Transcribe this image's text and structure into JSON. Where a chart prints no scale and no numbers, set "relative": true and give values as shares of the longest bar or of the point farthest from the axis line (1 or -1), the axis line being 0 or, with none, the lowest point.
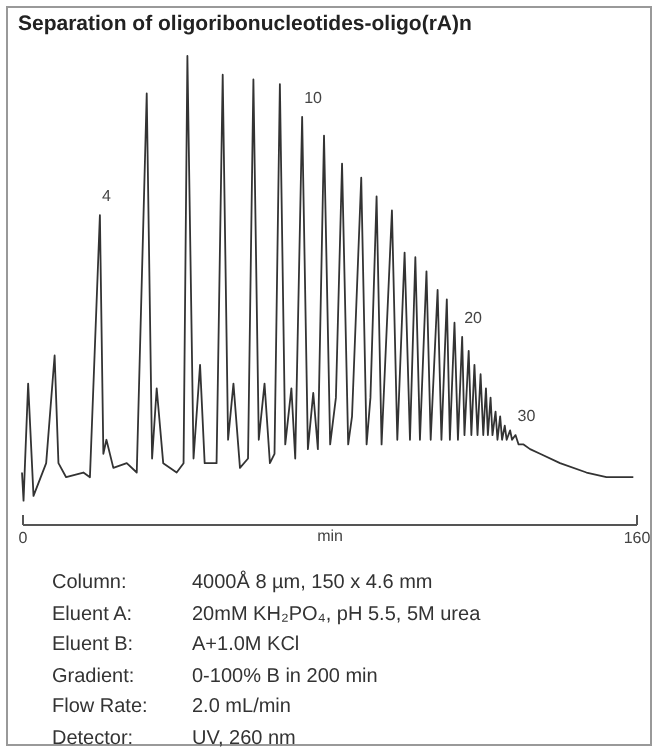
{
  "chart_data": {
    "type": "line",
    "title": "Separation of oligoribonucleotides-oligo(rA)n",
    "xlabel": "min",
    "relative": true,
    "grid": false,
    "xlim": [
      0,
      160
    ],
    "xticks": [
      0,
      160
    ],
    "x": [
      0,
      0.4,
      1.6,
      3.0,
      6.3,
      8.5,
      9.5,
      11.5,
      16.0,
      17.7,
      20.3,
      21.2,
      22.0,
      23.8,
      27.3,
      29.9,
      32.5,
      33.9,
      35.1,
      36.8,
      40.3,
      42.1,
      43.1,
      44.7,
      46.4,
      47.6,
      50.7,
      52.3,
      53.7,
      55.1,
      56.8,
      58.9,
      60.3,
      61.7,
      63.2,
      64.6,
      65.8,
      67.2,
      68.6,
      70.2,
      71.2,
      73.0,
      74.5,
      75.9,
      77.1,
      78.7,
      80.3,
      81.8,
      83.4,
      85.0,
      86.0,
      88.4,
      89.8,
      90.8,
      92.4,
      93.7,
      96.4,
      97.8,
      99.7,
      101.1,
      102.5,
      103.7,
      105.4,
      106.5,
      108.3,
      109.3,
      110.7,
      111.5,
      112.7,
      113.6,
      114.7,
      115.3,
      116.4,
      117.1,
      117.9,
      118.7,
      119.5,
      120.2,
      120.9,
      121.4,
      122.1,
      122.6,
      123.4,
      123.9,
      124.6,
      125.1,
      125.8,
      126.3,
      127.2,
      127.7,
      128.6,
      129.4,
      130.7,
      132.4,
      135.0,
      140.2,
      147.1,
      152.3,
      159.3
    ],
    "series": [
      {
        "color": "#333333",
        "values": [
          0.11,
          0.05,
          0.3,
          0.06,
          0.13,
          0.36,
          0.13,
          0.1,
          0.11,
          0.1,
          0.66,
          0.15,
          0.18,
          0.12,
          0.13,
          0.11,
          0.92,
          0.14,
          0.29,
          0.13,
          0.11,
          0.13,
          1.0,
          0.14,
          0.34,
          0.13,
          0.13,
          0.96,
          0.18,
          0.3,
          0.12,
          0.14,
          0.95,
          0.18,
          0.3,
          0.13,
          0.15,
          0.94,
          0.17,
          0.29,
          0.14,
          0.87,
          0.16,
          0.28,
          0.16,
          0.83,
          0.17,
          0.27,
          0.77,
          0.17,
          0.23,
          0.74,
          0.17,
          0.27,
          0.7,
          0.17,
          0.67,
          0.18,
          0.58,
          0.18,
          0.57,
          0.18,
          0.54,
          0.18,
          0.5,
          0.18,
          0.48,
          0.18,
          0.43,
          0.18,
          0.4,
          0.19,
          0.37,
          0.19,
          0.34,
          0.19,
          0.32,
          0.19,
          0.29,
          0.19,
          0.27,
          0.19,
          0.24,
          0.18,
          0.23,
          0.18,
          0.21,
          0.18,
          0.2,
          0.18,
          0.19,
          0.17,
          0.17,
          0.16,
          0.15,
          0.13,
          0.11,
          0.1,
          0.1
        ]
      }
    ],
    "annotations": [
      {
        "text": "4",
        "x": 20.3,
        "y": 0.66
      },
      {
        "text": "10",
        "x": 73.0,
        "y": 0.87
      },
      {
        "text": "20",
        "x": 114.7,
        "y": 0.4
      },
      {
        "text": "30",
        "x": 128.6,
        "y": 0.19
      },
      "Column: 4000Å 8 µm, 150 x 4.6 mm",
      "Eluent A: 20mM KH₂PO₄, pH 5.5, 5M urea",
      "Eluent B: A+1.0M KCl",
      "Gradient: 0-100% B in 200 min",
      "Flow Rate: 2.0 mL/min",
      "Detector: UV, 260 nm"
    ]
  }
}
